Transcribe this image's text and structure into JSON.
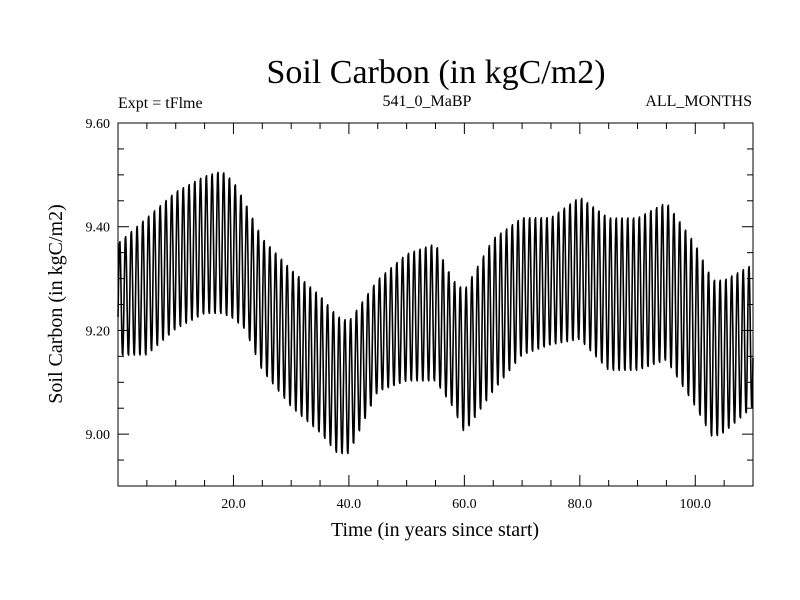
{
  "chart_data": {
    "type": "line",
    "title": "Soil Carbon (in kgC/m2)",
    "subtitle_left": "Expt = tFlme",
    "subtitle_center": "541_0_MaBP",
    "subtitle_right": "ALL_MONTHS",
    "xlabel": "Time (in years since start)",
    "ylabel": "Soil Carbon (in kgC/m2)",
    "xlim": [
      0,
      110
    ],
    "ylim": [
      8.9,
      9.6
    ],
    "x_ticks": [
      20,
      40,
      60,
      80,
      100
    ],
    "x_tick_labels": [
      "20.0",
      "40.0",
      "60.0",
      "80.0",
      "100.0"
    ],
    "y_ticks": [
      9.0,
      9.2,
      9.4,
      9.6
    ],
    "y_tick_labels": [
      "9.00",
      "9.20",
      "9.40",
      "9.60"
    ],
    "grid": false,
    "series": [
      {
        "name": "Soil Carbon",
        "sampling": "monthly (12 samples per year)",
        "annual_cycle": "seasonal oscillation: one peak and one trough per year",
        "x_years": [
          0,
          5,
          10,
          15,
          18,
          20,
          22,
          25,
          30,
          35,
          38,
          40,
          45,
          50,
          55,
          58,
          60,
          65,
          70,
          75,
          80,
          85,
          90,
          95,
          100,
          103,
          105,
          110
        ],
        "annual_max": [
          9.37,
          9.42,
          9.47,
          9.5,
          9.51,
          9.49,
          9.45,
          9.38,
          9.32,
          9.27,
          9.23,
          9.22,
          9.3,
          9.35,
          9.37,
          9.3,
          9.28,
          9.38,
          9.42,
          9.42,
          9.46,
          9.42,
          9.42,
          9.45,
          9.37,
          9.3,
          9.3,
          9.33
        ],
        "annual_min": [
          9.15,
          9.15,
          9.2,
          9.23,
          9.23,
          9.22,
          9.2,
          9.12,
          9.05,
          9.0,
          8.96,
          8.96,
          9.08,
          9.1,
          9.1,
          9.05,
          9.0,
          9.08,
          9.15,
          9.17,
          9.18,
          9.12,
          9.12,
          9.14,
          9.05,
          8.99,
          9.0,
          9.05
        ]
      }
    ]
  }
}
